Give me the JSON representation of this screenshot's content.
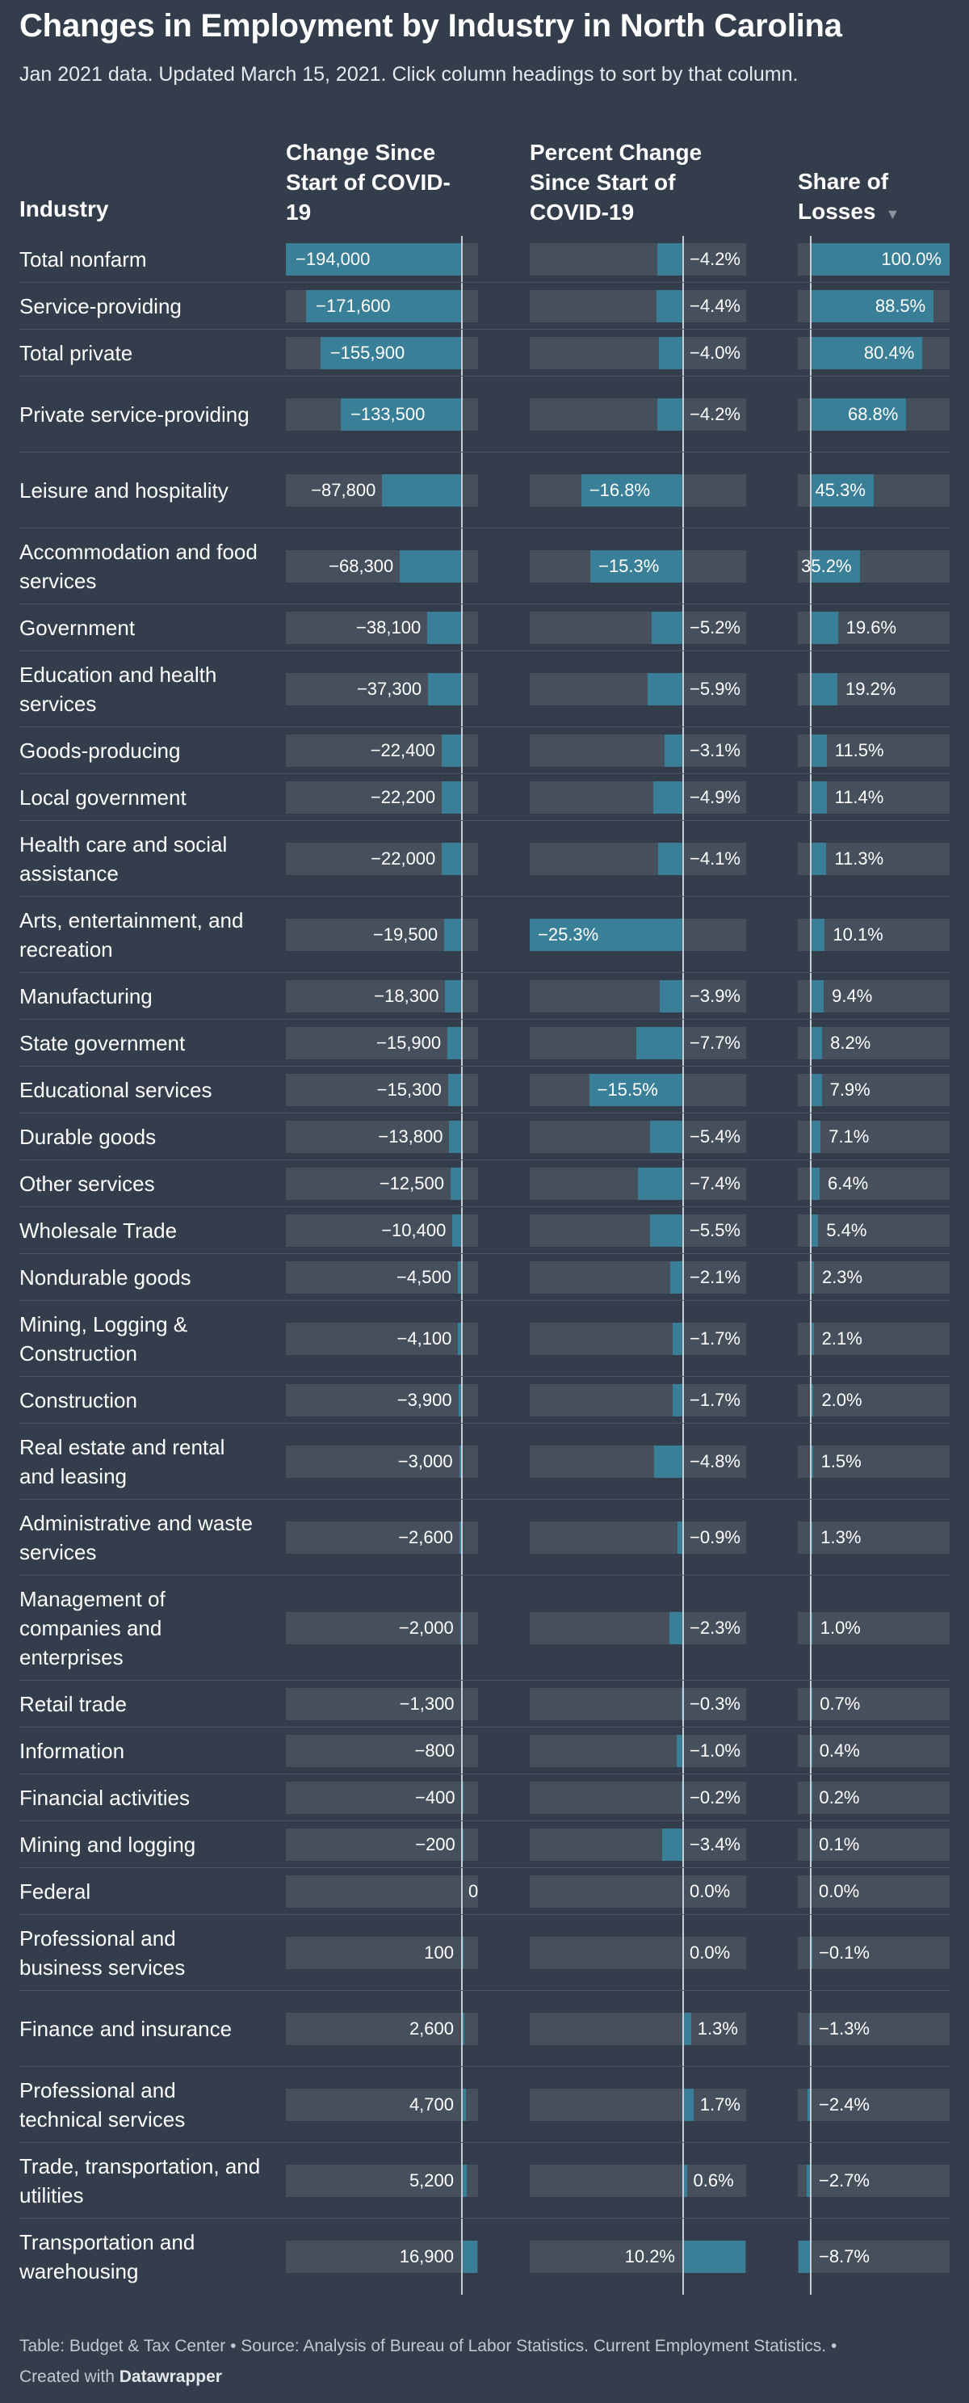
{
  "title": "Changes in Employment by Industry in North Carolina",
  "subtitle": "Jan 2021 data. Updated March 15, 2021. Click column headings to sort by that column.",
  "columns": {
    "industry": "Industry",
    "change": "Change Since Start of COVID-19",
    "change_lines": [
      "Change Since",
      "Start of COVID-",
      "19"
    ],
    "pct": "Percent Change Since Start of COVID-19",
    "pct_lines": [
      "Percent Change",
      "Since Start of",
      "COVID-19"
    ],
    "share": "Share of Losses",
    "share_lines": [
      "Share of",
      "Losses"
    ],
    "sort_icon": "▼"
  },
  "footer": {
    "source": "Table: Budget & Tax Center • Source: Analysis of Bureau of Labor Statistics. Current Employment Statistics. •",
    "created_prefix": "Created with",
    "created_brand": "Datawrapper"
  },
  "colors": {
    "background": "#333d4b",
    "bar": "#3a7f98",
    "track": "#464f5c"
  },
  "chart_data": {
    "type": "table",
    "series": [
      {
        "name": "Change Since Start of COVID-19",
        "key": "change"
      },
      {
        "name": "Percent Change Since Start of COVID-19",
        "key": "pct"
      },
      {
        "name": "Share of Losses",
        "key": "share"
      }
    ],
    "rows": [
      {
        "industry": "Total nonfarm",
        "change": -194000,
        "change_label": "−194,000",
        "pct": -4.2,
        "pct_label": "−4.2%",
        "share": 100.0,
        "share_label": "100.0%"
      },
      {
        "industry": "Service-providing",
        "change": -171600,
        "change_label": "−171,600",
        "pct": -4.4,
        "pct_label": "−4.4%",
        "share": 88.5,
        "share_label": "88.5%"
      },
      {
        "industry": "Total private",
        "change": -155900,
        "change_label": "−155,900",
        "pct": -4.0,
        "pct_label": "−4.0%",
        "share": 80.4,
        "share_label": "80.4%"
      },
      {
        "industry": "Private service-providing",
        "change": -133500,
        "change_label": "−133,500",
        "pct": -4.2,
        "pct_label": "−4.2%",
        "share": 68.8,
        "share_label": "68.8%"
      },
      {
        "industry": "Leisure and hospitality",
        "change": -87800,
        "change_label": "−87,800",
        "pct": -16.8,
        "pct_label": "−16.8%",
        "share": 45.3,
        "share_label": "45.3%"
      },
      {
        "industry": "Accommodation and food services",
        "change": -68300,
        "change_label": "−68,300",
        "pct": -15.3,
        "pct_label": "−15.3%",
        "share": 35.2,
        "share_label": "35.2%"
      },
      {
        "industry": "Government",
        "change": -38100,
        "change_label": "−38,100",
        "pct": -5.2,
        "pct_label": "−5.2%",
        "share": 19.6,
        "share_label": "19.6%"
      },
      {
        "industry": "Education and health services",
        "change": -37300,
        "change_label": "−37,300",
        "pct": -5.9,
        "pct_label": "−5.9%",
        "share": 19.2,
        "share_label": "19.2%"
      },
      {
        "industry": "Goods-producing",
        "change": -22400,
        "change_label": "−22,400",
        "pct": -3.1,
        "pct_label": "−3.1%",
        "share": 11.5,
        "share_label": "11.5%"
      },
      {
        "industry": "Local government",
        "change": -22200,
        "change_label": "−22,200",
        "pct": -4.9,
        "pct_label": "−4.9%",
        "share": 11.4,
        "share_label": "11.4%"
      },
      {
        "industry": "Health care and social assistance",
        "change": -22000,
        "change_label": "−22,000",
        "pct": -4.1,
        "pct_label": "−4.1%",
        "share": 11.3,
        "share_label": "11.3%"
      },
      {
        "industry": "Arts, entertainment, and recreation",
        "change": -19500,
        "change_label": "−19,500",
        "pct": -25.3,
        "pct_label": "−25.3%",
        "share": 10.1,
        "share_label": "10.1%"
      },
      {
        "industry": "Manufacturing",
        "change": -18300,
        "change_label": "−18,300",
        "pct": -3.9,
        "pct_label": "−3.9%",
        "share": 9.4,
        "share_label": "9.4%"
      },
      {
        "industry": "State government",
        "change": -15900,
        "change_label": "−15,900",
        "pct": -7.7,
        "pct_label": "−7.7%",
        "share": 8.2,
        "share_label": "8.2%"
      },
      {
        "industry": "Educational services",
        "change": -15300,
        "change_label": "−15,300",
        "pct": -15.5,
        "pct_label": "−15.5%",
        "share": 7.9,
        "share_label": "7.9%"
      },
      {
        "industry": "Durable goods",
        "change": -13800,
        "change_label": "−13,800",
        "pct": -5.4,
        "pct_label": "−5.4%",
        "share": 7.1,
        "share_label": "7.1%"
      },
      {
        "industry": "Other services",
        "change": -12500,
        "change_label": "−12,500",
        "pct": -7.4,
        "pct_label": "−7.4%",
        "share": 6.4,
        "share_label": "6.4%"
      },
      {
        "industry": "Wholesale Trade",
        "change": -10400,
        "change_label": "−10,400",
        "pct": -5.5,
        "pct_label": "−5.5%",
        "share": 5.4,
        "share_label": "5.4%"
      },
      {
        "industry": "Nondurable goods",
        "change": -4500,
        "change_label": "−4,500",
        "pct": -2.1,
        "pct_label": "−2.1%",
        "share": 2.3,
        "share_label": "2.3%"
      },
      {
        "industry": "Mining, Logging & Construction",
        "change": -4100,
        "change_label": "−4,100",
        "pct": -1.7,
        "pct_label": "−1.7%",
        "share": 2.1,
        "share_label": "2.1%"
      },
      {
        "industry": "Construction",
        "change": -3900,
        "change_label": "−3,900",
        "pct": -1.7,
        "pct_label": "−1.7%",
        "share": 2.0,
        "share_label": "2.0%"
      },
      {
        "industry": "Real estate and rental and leasing",
        "change": -3000,
        "change_label": "−3,000",
        "pct": -4.8,
        "pct_label": "−4.8%",
        "share": 1.5,
        "share_label": "1.5%"
      },
      {
        "industry": "Administrative and waste services",
        "change": -2600,
        "change_label": "−2,600",
        "pct": -0.9,
        "pct_label": "−0.9%",
        "share": 1.3,
        "share_label": "1.3%"
      },
      {
        "industry": "Management of companies and enterprises",
        "change": -2000,
        "change_label": "−2,000",
        "pct": -2.3,
        "pct_label": "−2.3%",
        "share": 1.0,
        "share_label": "1.0%"
      },
      {
        "industry": "Retail trade",
        "change": -1300,
        "change_label": "−1,300",
        "pct": -0.3,
        "pct_label": "−0.3%",
        "share": 0.7,
        "share_label": "0.7%"
      },
      {
        "industry": "Information",
        "change": -800,
        "change_label": "−800",
        "pct": -1.0,
        "pct_label": "−1.0%",
        "share": 0.4,
        "share_label": "0.4%"
      },
      {
        "industry": "Financial activities",
        "change": -400,
        "change_label": "−400",
        "pct": -0.2,
        "pct_label": "−0.2%",
        "share": 0.2,
        "share_label": "0.2%"
      },
      {
        "industry": "Mining and logging",
        "change": -200,
        "change_label": "−200",
        "pct": -3.4,
        "pct_label": "−3.4%",
        "share": 0.1,
        "share_label": "0.1%"
      },
      {
        "industry": "Federal",
        "change": 0,
        "change_label": "0",
        "pct": 0.0,
        "pct_label": "0.0%",
        "share": 0.0,
        "share_label": "0.0%"
      },
      {
        "industry": "Professional and business services",
        "change": 100,
        "change_label": "100",
        "pct": 0.0,
        "pct_label": "0.0%",
        "share": -0.1,
        "share_label": "−0.1%"
      },
      {
        "industry": "Finance and insurance",
        "change": 2600,
        "change_label": "2,600",
        "pct": 1.3,
        "pct_label": "1.3%",
        "share": -1.3,
        "share_label": "−1.3%"
      },
      {
        "industry": "Professional and technical services",
        "change": 4700,
        "change_label": "4,700",
        "pct": 1.7,
        "pct_label": "1.7%",
        "share": -2.4,
        "share_label": "−2.4%"
      },
      {
        "industry": "Trade, transportation, and utilities",
        "change": 5200,
        "change_label": "5,200",
        "pct": 0.6,
        "pct_label": "0.6%",
        "share": -2.7,
        "share_label": "−2.7%"
      },
      {
        "industry": "Transportation and warehousing",
        "change": 16900,
        "change_label": "16,900",
        "pct": 10.2,
        "pct_label": "10.2%",
        "share": -8.7,
        "share_label": "−8.7%"
      }
    ]
  }
}
